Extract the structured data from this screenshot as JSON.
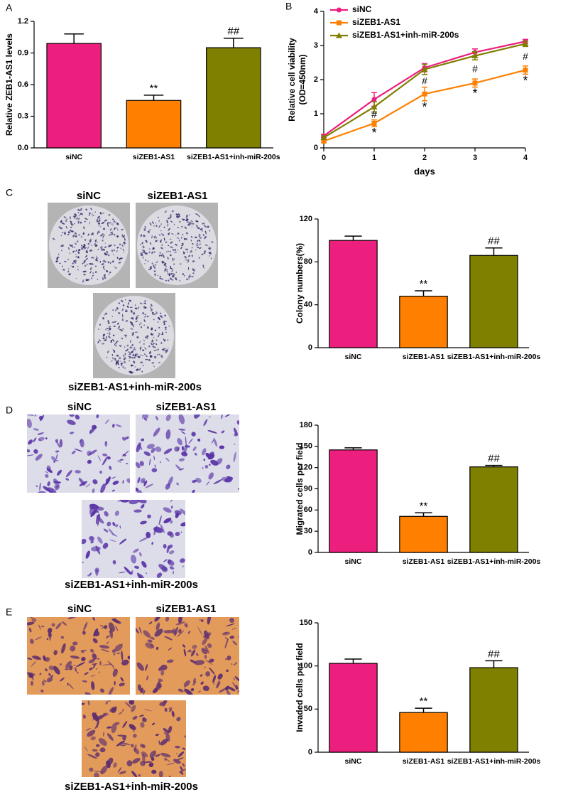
{
  "panels": [
    "A",
    "B",
    "C",
    "D",
    "E"
  ],
  "chart_data": [
    {
      "type": "bar",
      "ylabel": "Relative ZEB1-AS1 levels",
      "categories": [
        "siNC",
        "siZEB1-AS1",
        "siZEB1-AS1+inh-miR-200s"
      ],
      "values": [
        0.99,
        0.45,
        0.95
      ],
      "errors": [
        0.09,
        0.05,
        0.09
      ],
      "colors": [
        "#ec1f7f",
        "#ff8000",
        "#7f7f00"
      ],
      "annotations": [
        null,
        "**",
        "##"
      ],
      "ylim": [
        0,
        1.2
      ],
      "yticks": [
        {
          "value": 0,
          "label": "0.0"
        },
        0.3,
        0.6,
        0.9,
        1.2
      ]
    },
    {
      "type": "line",
      "xlabel": "days",
      "ylabel": [
        "Relative cell viability",
        "(OD=450nm)"
      ],
      "x": [
        0,
        1,
        2,
        3,
        4
      ],
      "xlim": [
        0,
        4
      ],
      "xticks": [
        0,
        1,
        2,
        3,
        4
      ],
      "ylim": [
        0,
        4
      ],
      "yticks": [
        0,
        1,
        2,
        3,
        4
      ],
      "series": [
        {
          "name": "siNC",
          "color": "#ec1f7f",
          "marker": "circle",
          "values": [
            0.35,
            1.42,
            2.35,
            2.8,
            3.12
          ],
          "errors": [
            0.05,
            0.2,
            0.12,
            0.1,
            0.06
          ]
        },
        {
          "name": "siZEB1-AS1",
          "color": "#ff8000",
          "marker": "square",
          "values": [
            0.2,
            0.72,
            1.58,
            1.9,
            2.28
          ],
          "errors": [
            0.05,
            0.1,
            0.2,
            0.12,
            0.12
          ]
        },
        {
          "name": "siZEB1-AS1+inh-miR-200s",
          "color": "#7f7f00",
          "marker": "triangle",
          "values": [
            0.3,
            1.2,
            2.3,
            2.7,
            3.05
          ],
          "errors": [
            0.05,
            0.15,
            0.15,
            0.12,
            0.08
          ]
        }
      ],
      "hash_annotations": [
        null,
        "#",
        "#",
        "#",
        "#"
      ],
      "star_annotations": [
        null,
        "*",
        "*",
        "*",
        "*"
      ]
    },
    {
      "type": "bar",
      "ylabel": "Colony numbers(%)",
      "categories": [
        "siNC",
        "siZEB1-AS1",
        "siZEB1-AS1+inh-miR-200s"
      ],
      "values": [
        100,
        48,
        86
      ],
      "errors": [
        4,
        5,
        7
      ],
      "colors": [
        "#ec1f7f",
        "#ff8000",
        "#7f7f00"
      ],
      "annotations": [
        null,
        "**",
        "##"
      ],
      "ylim": [
        0,
        120
      ],
      "yticks": [
        0,
        40,
        80,
        120
      ]
    },
    {
      "type": "bar",
      "ylabel": "Migrated cells per field",
      "categories": [
        "siNC",
        "siZEB1-AS1",
        "siZEB1-AS1+inh-miR-200s"
      ],
      "values": [
        145,
        51,
        121
      ],
      "errors": [
        3,
        5,
        2
      ],
      "colors": [
        "#ec1f7f",
        "#ff8000",
        "#7f7f00"
      ],
      "annotations": [
        null,
        "**",
        "##"
      ],
      "ylim": [
        0,
        180
      ],
      "yticks": [
        0,
        30,
        60,
        90,
        120,
        150,
        180
      ]
    },
    {
      "type": "bar",
      "ylabel": "Invaded cells per field",
      "categories": [
        "siNC",
        "siZEB1-AS1",
        "siZEB1-AS1+inh-miR-200s"
      ],
      "values": [
        103,
        46,
        98
      ],
      "errors": [
        5,
        5,
        8
      ],
      "colors": [
        "#ec1f7f",
        "#ff8000",
        "#7f7f00"
      ],
      "annotations": [
        null,
        "**",
        "##"
      ],
      "ylim": [
        0,
        150
      ],
      "yticks": [
        0,
        50,
        100,
        150
      ]
    }
  ],
  "photos": [
    {
      "captions": [
        "siNC",
        "siZEB1-AS1",
        "siZEB1-AS1+inh-miR-200s"
      ]
    },
    {
      "captions": [
        "siNC",
        "siZEB1-AS1",
        "siZEB1-AS1+inh-miR-200s"
      ]
    },
    {
      "captions": [
        "siNC",
        "siZEB1-AS1",
        "siZEB1-AS1+inh-miR-200s"
      ]
    }
  ]
}
